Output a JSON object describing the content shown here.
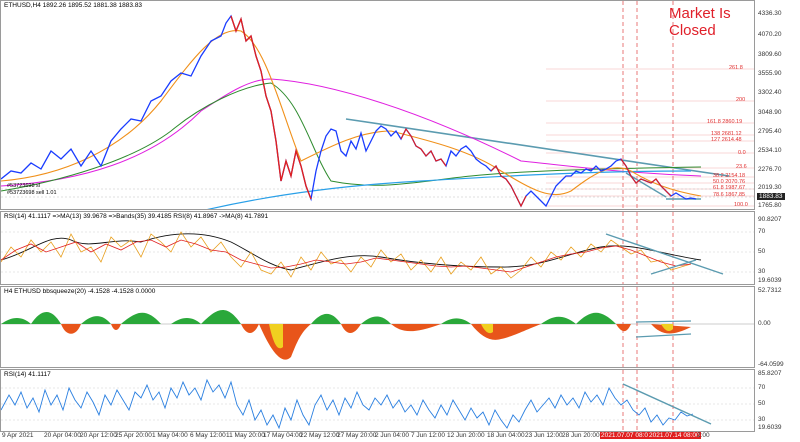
{
  "main": {
    "title": "ETHUSD,H4  1892.26 1895.52 1881.38 1883.83",
    "market_status": "Market Is Closed",
    "order_buy": "#53723698 sl",
    "order_sell": "#53723698 sell 1.01",
    "current_price": "1883.83",
    "scale": [
      "4336.30",
      "4070.20",
      "3809.60",
      "3555.90",
      "3302.40",
      "3048.90",
      "2795.40",
      "2534.10",
      "2276.70",
      "2019.30",
      "1765.80"
    ],
    "fib_levels": [
      "261.8",
      "200",
      "161.8  2860.19",
      "138  2681.12",
      "127  2614.48",
      "0.0",
      "23.6",
      "38.2  2154.18",
      "50.0  2070.76",
      "61.8  1987.67",
      "78.6  1867.85",
      "100.0"
    ]
  },
  "rsi_ma": {
    "title": "RSI(14) 41.1117  =>MA(13) 39.9678  =>Bands(35) 39.4185  RSI(8) 41.8967  ->MA(8) 41.7891",
    "scale": [
      "90.8207",
      "70",
      "50",
      "30",
      "19.6039"
    ]
  },
  "squeeze": {
    "title": "H4 ETHUSD bbsqueeze(20) -4.1528 -4.1528 0.0000",
    "scale": [
      "52.7312",
      "0.00",
      "-64.0599"
    ]
  },
  "rsi": {
    "title": "RSI(14) 41.1117",
    "scale": [
      "85.8207",
      "70",
      "50",
      "30",
      "19.6039"
    ]
  },
  "xaxis": {
    "labels": [
      "9 Apr 2021",
      "20 Apr 04:00",
      "20 Apr 12:00",
      "25 Apr 20:00",
      "1 May 04:00",
      "6 May 12:00",
      "11 May 20:00",
      "17 May 04:00",
      "22 May 12:00",
      "27 May 20:00",
      "2 Jun 04:00",
      "7 Jun 12:00",
      "12 Jun 20:00",
      "18 Jun 04:00",
      "23 Jun 12:00",
      "28 Jun 20:00"
    ],
    "highlight_1": "2021.07.07 08:00",
    "highlight_2": "2021.07.14 08:00",
    "last": "2:00"
  },
  "colors": {
    "bull": "#1a3cff",
    "bear": "#e02020",
    "ma_fast": "#2aa0e8",
    "ma_slow": "#2e8b2e",
    "ma_mag": "#e020e0",
    "ma_orange": "#f0901a",
    "trend": "#5b9bb0"
  }
}
